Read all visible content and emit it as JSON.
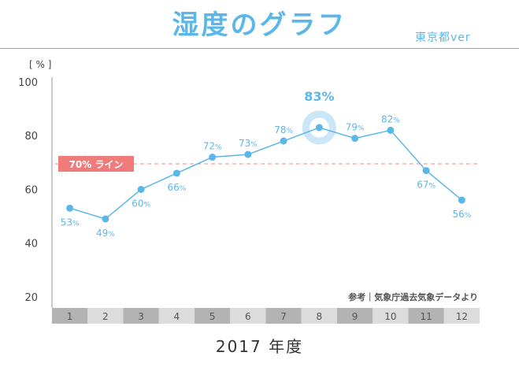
{
  "title": "湿度のグラフ",
  "subtitle": "東京都ver",
  "source_note": "参考｜気象庁過去気象データより",
  "colors": {
    "accent": "#5bb7e8",
    "reference": "#f07b7b",
    "band_dark": "#b3b3b3",
    "band_light": "#dcdcdc"
  },
  "chart_data": {
    "type": "line",
    "title": "湿度のグラフ",
    "subtitle": "東京都ver",
    "xlabel": "2017 年度",
    "ylabel": "[ % ]",
    "categories": [
      "1",
      "2",
      "3",
      "4",
      "5",
      "6",
      "7",
      "8",
      "9",
      "10",
      "11",
      "12"
    ],
    "values": [
      53,
      49,
      60,
      66,
      72,
      73,
      78,
      83,
      79,
      82,
      67,
      56
    ],
    "value_labels": [
      "53%",
      "49%",
      "60%",
      "66%",
      "72%",
      "73%",
      "78%",
      "83%",
      "79%",
      "82%",
      "67%",
      "56%"
    ],
    "ylim": [
      10,
      100
    ],
    "yticks": [
      "20",
      "40",
      "60",
      "80",
      "100"
    ],
    "reference_line": {
      "value": 69.5,
      "label": "70% ライン"
    },
    "highlight": {
      "index": 7,
      "label": "83%"
    },
    "grid": false
  }
}
